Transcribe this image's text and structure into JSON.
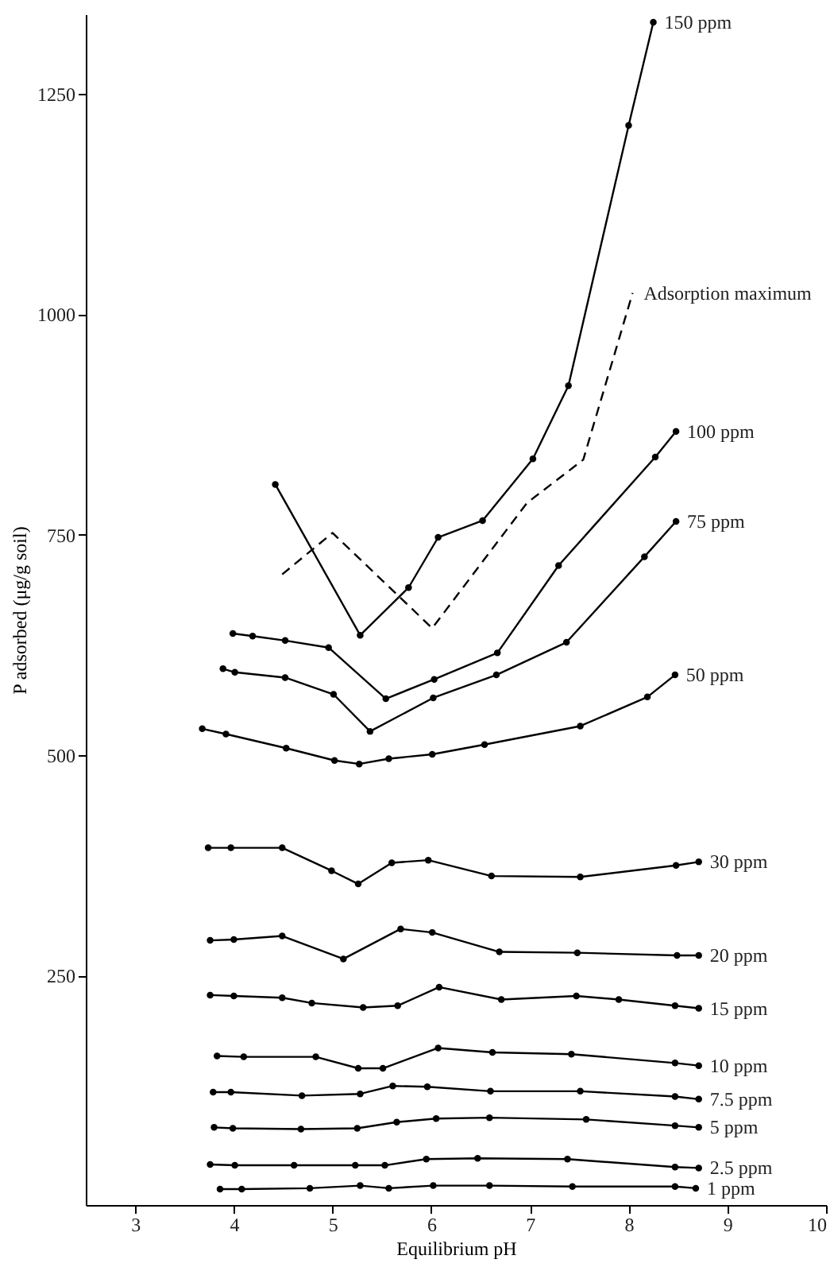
{
  "chart_data": {
    "type": "line",
    "xlabel": "Equilibrium pH",
    "ylabel": "P adsorbed (μg/g soil)",
    "xlim": [
      2.5,
      10
    ],
    "xticks": [
      3,
      4,
      5,
      6,
      7,
      8,
      9,
      10
    ],
    "ylim": [
      -10,
      1340
    ],
    "yticks": [
      250,
      500,
      750,
      1000,
      1250
    ],
    "grid": false,
    "legend": false,
    "marker": "circle",
    "line_style": "solid",
    "series": [
      {
        "name": "150 ppm",
        "color": "#000000",
        "x": [
          4.42,
          5.28,
          5.77,
          6.07,
          6.52,
          7.03,
          7.39,
          8.0,
          8.25
        ],
        "values": [
          807,
          636,
          690,
          747,
          766,
          836,
          919,
          1214,
          1331
        ]
      },
      {
        "name": "Adsorption maximum",
        "color": "#000000",
        "marker": "none",
        "line_style": "dashed",
        "x": [
          4.49,
          5.0,
          6.01,
          6.97,
          7.54,
          8.04
        ],
        "values": [
          705,
          752,
          644,
          786,
          835,
          1024
        ]
      },
      {
        "name": "100 ppm",
        "color": "#000000",
        "x": [
          3.99,
          4.19,
          4.52,
          4.96,
          5.54,
          6.03,
          6.67,
          7.29,
          8.27,
          8.48
        ],
        "values": [
          638,
          635,
          630,
          622,
          564,
          586,
          616,
          715,
          838,
          867
        ]
      },
      {
        "name": "75 ppm",
        "color": "#000000",
        "x": [
          3.89,
          4.01,
          4.52,
          5.01,
          5.38,
          6.02,
          6.66,
          7.37,
          8.16,
          8.48
        ],
        "values": [
          598,
          594,
          588,
          569,
          527,
          565,
          591,
          628,
          725,
          765
        ]
      },
      {
        "name": "50 ppm",
        "color": "#000000",
        "x": [
          3.68,
          3.92,
          4.53,
          5.02,
          5.27,
          5.57,
          6.01,
          6.54,
          7.51,
          8.19,
          8.47
        ],
        "values": [
          530,
          524,
          508,
          494,
          490,
          496,
          501,
          512,
          533,
          566,
          591
        ]
      },
      {
        "name": "30 ppm",
        "color": "#000000",
        "x": [
          3.74,
          3.97,
          4.49,
          4.99,
          5.26,
          5.6,
          5.97,
          6.61,
          7.51,
          8.48,
          8.71
        ],
        "values": [
          395,
          395,
          395,
          369,
          354,
          378,
          381,
          363,
          362,
          375,
          379
        ]
      },
      {
        "name": "20 ppm",
        "color": "#000000",
        "x": [
          3.76,
          4.0,
          4.49,
          5.11,
          5.69,
          6.01,
          6.69,
          7.48,
          8.49,
          8.71
        ],
        "values": [
          290,
          291,
          295,
          269,
          303,
          299,
          277,
          276,
          273,
          273
        ]
      },
      {
        "name": "15 ppm",
        "color": "#000000",
        "x": [
          3.76,
          4.0,
          4.49,
          4.79,
          5.31,
          5.66,
          6.08,
          6.71,
          7.47,
          7.9,
          8.47,
          8.71
        ],
        "values": [
          228,
          227,
          225,
          219,
          214,
          216,
          237,
          223,
          227,
          223,
          216,
          213
        ]
      },
      {
        "name": "10 ppm",
        "color": "#000000",
        "x": [
          3.83,
          4.1,
          4.83,
          5.26,
          5.51,
          6.07,
          6.62,
          7.42,
          8.47,
          8.71
        ],
        "values": [
          159,
          158,
          158,
          145,
          145,
          168,
          163,
          161,
          151,
          148
        ]
      },
      {
        "name": "7.5 ppm",
        "color": "#000000",
        "x": [
          3.79,
          3.97,
          4.69,
          5.28,
          5.61,
          5.96,
          6.6,
          7.51,
          8.47,
          8.71
        ],
        "values": [
          118,
          118,
          114,
          116,
          125,
          124,
          119,
          119,
          113,
          110
        ]
      },
      {
        "name": "5 ppm",
        "color": "#000000",
        "x": [
          3.8,
          3.99,
          4.68,
          5.25,
          5.65,
          6.05,
          6.59,
          7.57,
          8.47,
          8.71
        ],
        "values": [
          78,
          77,
          76,
          77,
          84,
          88,
          89,
          87,
          80,
          78
        ]
      },
      {
        "name": "2.5 ppm",
        "color": "#000000",
        "x": [
          3.76,
          4.01,
          4.61,
          5.23,
          5.53,
          5.95,
          6.47,
          7.38,
          8.47,
          8.71
        ],
        "values": [
          36,
          35,
          35,
          35,
          35,
          42,
          43,
          42,
          33,
          32
        ]
      },
      {
        "name": "1 ppm",
        "color": "#000000",
        "x": [
          3.86,
          4.08,
          4.77,
          5.28,
          5.57,
          6.02,
          6.59,
          7.43,
          8.47,
          8.68
        ],
        "values": [
          8,
          8,
          9,
          12,
          9,
          12,
          12,
          11,
          11,
          9
        ]
      }
    ]
  }
}
